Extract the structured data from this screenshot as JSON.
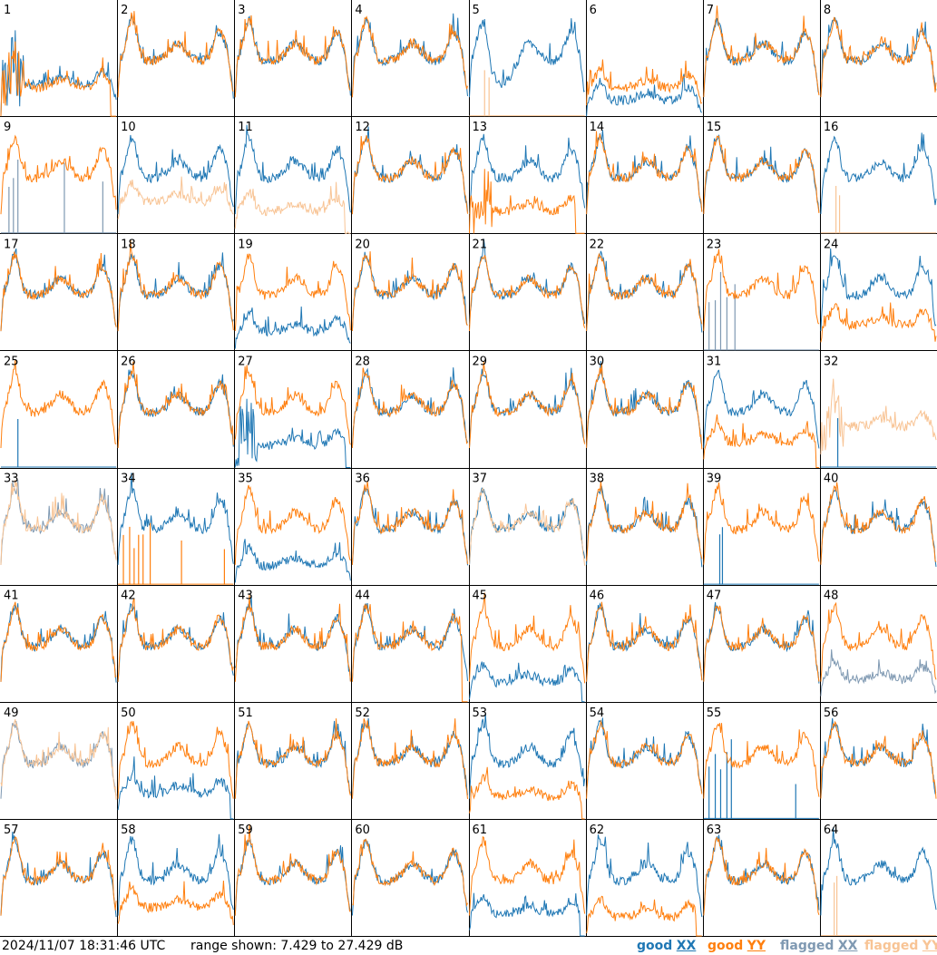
{
  "footer": {
    "timestamp": "2024/11/07 18:31:46 UTC",
    "range_text": "range shown: 7.429 to 27.429 dB",
    "legend": [
      {
        "label": "good",
        "key": "XX",
        "color": "#1f77b4"
      },
      {
        "label": "good",
        "key": "YY",
        "color": "#ff7f0e"
      },
      {
        "label": "flagged",
        "key": "XX",
        "color": "#7f99b2"
      },
      {
        "label": "flagged",
        "key": "YY",
        "color": "#f8c495"
      }
    ]
  },
  "chart_data": {
    "type": "line",
    "title": "",
    "y_range_db": [
      7.429,
      27.429
    ],
    "grid": {
      "rows": 8,
      "cols": 8
    },
    "series_colors": {
      "good_xx": "#1f77b4",
      "good_yy": "#ff7f0e",
      "flagged_xx": "#7f99b2",
      "flagged_yy": "#f8c495"
    },
    "panels": [
      {
        "id": "1",
        "xx": {
          "s": "good",
          "p": "bad",
          "lev": 15
        },
        "yy": {
          "s": "good",
          "p": "bad",
          "lev": 14,
          "drop": 0.95
        }
      },
      {
        "id": "2",
        "xx": {
          "s": "good",
          "p": "normal"
        },
        "yy": {
          "s": "good",
          "p": "normal"
        }
      },
      {
        "id": "3",
        "xx": {
          "s": "good",
          "p": "normal"
        },
        "yy": {
          "s": "good",
          "p": "normal"
        }
      },
      {
        "id": "4",
        "xx": {
          "s": "good",
          "p": "normal"
        },
        "yy": {
          "s": "good",
          "p": "normal"
        }
      },
      {
        "id": "5",
        "xx": {
          "s": "good",
          "p": "dip"
        },
        "yy": {
          "s": "flagged",
          "p": "spikes",
          "pos": [
            0.13,
            0.17
          ]
        }
      },
      {
        "id": "6",
        "xx": {
          "s": "good",
          "p": "low",
          "lev": 10
        },
        "yy": {
          "s": "good",
          "p": "low",
          "lev": 14
        }
      },
      {
        "id": "7",
        "xx": {
          "s": "good",
          "p": "normal"
        },
        "yy": {
          "s": "good",
          "p": "normal"
        }
      },
      {
        "id": "8",
        "xx": {
          "s": "good",
          "p": "normal"
        },
        "yy": {
          "s": "good",
          "p": "normal"
        }
      },
      {
        "id": "9",
        "xx": {
          "s": "flagged",
          "p": "spikes",
          "pos": [
            0.07,
            0.11,
            0.15,
            0.5,
            0.55,
            0.88
          ]
        },
        "yy": {
          "s": "good",
          "p": "normal"
        }
      },
      {
        "id": "10",
        "xx": {
          "s": "good",
          "p": "normal"
        },
        "yy": {
          "s": "flagged",
          "p": "low",
          "lev": 15
        }
      },
      {
        "id": "11",
        "xx": {
          "s": "good",
          "p": "normal"
        },
        "yy": {
          "s": "flagged",
          "p": "low",
          "lev": 12,
          "drop": 0.95
        }
      },
      {
        "id": "12",
        "xx": {
          "s": "good",
          "p": "normal"
        },
        "yy": {
          "s": "good",
          "p": "normal"
        }
      },
      {
        "id": "13",
        "xx": {
          "s": "good",
          "p": "normal"
        },
        "yy": {
          "s": "good",
          "p": "bad",
          "lev": 12,
          "drop": 0.92
        }
      },
      {
        "id": "14",
        "xx": {
          "s": "good",
          "p": "normal"
        },
        "yy": {
          "s": "good",
          "p": "normal"
        }
      },
      {
        "id": "15",
        "xx": {
          "s": "good",
          "p": "normal"
        },
        "yy": {
          "s": "good",
          "p": "normal"
        }
      },
      {
        "id": "16",
        "xx": {
          "s": "good",
          "p": "normal"
        },
        "yy": {
          "s": "flagged",
          "p": "spikes",
          "pos": [
            0.13,
            0.16
          ]
        }
      },
      {
        "id": "17",
        "xx": {
          "s": "good",
          "p": "normal"
        },
        "yy": {
          "s": "good",
          "p": "normal"
        }
      },
      {
        "id": "18",
        "xx": {
          "s": "good",
          "p": "normal"
        },
        "yy": {
          "s": "good",
          "p": "normal"
        }
      },
      {
        "id": "19",
        "xx": {
          "s": "good",
          "p": "low",
          "lev": 11
        },
        "yy": {
          "s": "good",
          "p": "normal"
        }
      },
      {
        "id": "20",
        "xx": {
          "s": "good",
          "p": "normal"
        },
        "yy": {
          "s": "good",
          "p": "normal"
        }
      },
      {
        "id": "21",
        "xx": {
          "s": "good",
          "p": "normal"
        },
        "yy": {
          "s": "good",
          "p": "normal"
        }
      },
      {
        "id": "22",
        "xx": {
          "s": "good",
          "p": "normal"
        },
        "yy": {
          "s": "good",
          "p": "normal"
        }
      },
      {
        "id": "23",
        "xx": {
          "s": "flagged",
          "p": "spikes",
          "pos": [
            0.05,
            0.1,
            0.15,
            0.2,
            0.27
          ]
        },
        "yy": {
          "s": "good",
          "p": "normal"
        }
      },
      {
        "id": "24",
        "xx": {
          "s": "good",
          "p": "normal"
        },
        "yy": {
          "s": "good",
          "p": "low",
          "lev": 13
        }
      },
      {
        "id": "25",
        "xx": {
          "s": "good",
          "p": "spikes",
          "pos": [
            0.15
          ]
        },
        "yy": {
          "s": "good",
          "p": "normal"
        }
      },
      {
        "id": "26",
        "xx": {
          "s": "good",
          "p": "normal"
        },
        "yy": {
          "s": "good",
          "p": "normal"
        }
      },
      {
        "id": "27",
        "xx": {
          "s": "good",
          "p": "bad",
          "lev": 12,
          "drop": 0.96
        },
        "yy": {
          "s": "good",
          "p": "normal"
        }
      },
      {
        "id": "28",
        "xx": {
          "s": "good",
          "p": "normal"
        },
        "yy": {
          "s": "good",
          "p": "normal"
        }
      },
      {
        "id": "29",
        "xx": {
          "s": "good",
          "p": "normal"
        },
        "yy": {
          "s": "good",
          "p": "normal"
        }
      },
      {
        "id": "30",
        "xx": {
          "s": "good",
          "p": "normal"
        },
        "yy": {
          "s": "good",
          "p": "normal"
        }
      },
      {
        "id": "31",
        "xx": {
          "s": "good",
          "p": "normal"
        },
        "yy": {
          "s": "good",
          "p": "low",
          "lev": 13,
          "drop": 0.97
        }
      },
      {
        "id": "32",
        "xx": {
          "s": "good",
          "p": "spikes",
          "pos": [
            0.15
          ]
        },
        "yy": {
          "s": "flagged",
          "p": "bad",
          "lev": 18
        }
      },
      {
        "id": "33",
        "xx": {
          "s": "flagged",
          "p": "normal"
        },
        "yy": {
          "s": "flagged",
          "p": "normal"
        }
      },
      {
        "id": "34",
        "xx": {
          "s": "good",
          "p": "normal"
        },
        "yy": {
          "s": "good",
          "p": "spikes",
          "pos": [
            0.05,
            0.1,
            0.14,
            0.18,
            0.22,
            0.28,
            0.55,
            0.92
          ]
        }
      },
      {
        "id": "35",
        "xx": {
          "s": "good",
          "p": "low",
          "lev": 11
        },
        "yy": {
          "s": "good",
          "p": "normal"
        }
      },
      {
        "id": "36",
        "xx": {
          "s": "good",
          "p": "normal"
        },
        "yy": {
          "s": "good",
          "p": "normal"
        }
      },
      {
        "id": "37",
        "xx": {
          "s": "good",
          "p": "normal"
        },
        "yy": {
          "s": "flagged",
          "p": "normal"
        }
      },
      {
        "id": "38",
        "xx": {
          "s": "good",
          "p": "normal"
        },
        "yy": {
          "s": "good",
          "p": "normal"
        }
      },
      {
        "id": "39",
        "xx": {
          "s": "good",
          "p": "spikes",
          "pos": [
            0.14,
            0.16
          ]
        },
        "yy": {
          "s": "good",
          "p": "normal"
        }
      },
      {
        "id": "40",
        "xx": {
          "s": "good",
          "p": "normal"
        },
        "yy": {
          "s": "good",
          "p": "normal"
        }
      },
      {
        "id": "41",
        "xx": {
          "s": "good",
          "p": "normal"
        },
        "yy": {
          "s": "good",
          "p": "normal"
        }
      },
      {
        "id": "42",
        "xx": {
          "s": "good",
          "p": "normal"
        },
        "yy": {
          "s": "good",
          "p": "normal"
        }
      },
      {
        "id": "43",
        "xx": {
          "s": "good",
          "p": "normal"
        },
        "yy": {
          "s": "good",
          "p": "normal"
        }
      },
      {
        "id": "44",
        "xx": {
          "s": "good",
          "p": "normal"
        },
        "yy": {
          "s": "good",
          "p": "normal",
          "drop": 0.95
        }
      },
      {
        "id": "45",
        "xx": {
          "s": "good",
          "p": "low",
          "lev": 11,
          "drop": 0.97
        },
        "yy": {
          "s": "good",
          "p": "normal"
        }
      },
      {
        "id": "46",
        "xx": {
          "s": "good",
          "p": "normal"
        },
        "yy": {
          "s": "good",
          "p": "normal"
        }
      },
      {
        "id": "47",
        "xx": {
          "s": "good",
          "p": "normal"
        },
        "yy": {
          "s": "good",
          "p": "normal"
        }
      },
      {
        "id": "48",
        "xx": {
          "s": "flagged",
          "p": "low",
          "lev": 12
        },
        "yy": {
          "s": "good",
          "p": "normal"
        }
      },
      {
        "id": "49",
        "xx": {
          "s": "flagged",
          "p": "normal"
        },
        "yy": {
          "s": "flagged",
          "p": "normal"
        }
      },
      {
        "id": "50",
        "xx": {
          "s": "good",
          "p": "low",
          "lev": 13,
          "drop": 0.97
        },
        "yy": {
          "s": "good",
          "p": "normal"
        }
      },
      {
        "id": "51",
        "xx": {
          "s": "good",
          "p": "normal"
        },
        "yy": {
          "s": "good",
          "p": "normal"
        }
      },
      {
        "id": "52",
        "xx": {
          "s": "good",
          "p": "normal"
        },
        "yy": {
          "s": "good",
          "p": "normal"
        }
      },
      {
        "id": "53",
        "xx": {
          "s": "good",
          "p": "normal"
        },
        "yy": {
          "s": "good",
          "p": "low",
          "lev": 12,
          "drop": 0.97
        }
      },
      {
        "id": "54",
        "xx": {
          "s": "good",
          "p": "normal"
        },
        "yy": {
          "s": "good",
          "p": "normal"
        }
      },
      {
        "id": "55",
        "xx": {
          "s": "good",
          "p": "spikes",
          "pos": [
            0.05,
            0.1,
            0.15,
            0.2,
            0.24,
            0.8
          ]
        },
        "yy": {
          "s": "good",
          "p": "normal"
        }
      },
      {
        "id": "56",
        "xx": {
          "s": "good",
          "p": "normal"
        },
        "yy": {
          "s": "good",
          "p": "normal"
        }
      },
      {
        "id": "57",
        "xx": {
          "s": "good",
          "p": "normal"
        },
        "yy": {
          "s": "good",
          "p": "normal"
        }
      },
      {
        "id": "58",
        "xx": {
          "s": "good",
          "p": "normal"
        },
        "yy": {
          "s": "good",
          "p": "low",
          "lev": 14
        }
      },
      {
        "id": "59",
        "xx": {
          "s": "good",
          "p": "normal"
        },
        "yy": {
          "s": "good",
          "p": "normal"
        }
      },
      {
        "id": "60",
        "xx": {
          "s": "good",
          "p": "normal"
        },
        "yy": {
          "s": "good",
          "p": "normal"
        }
      },
      {
        "id": "61",
        "xx": {
          "s": "good",
          "p": "low",
          "lev": 12,
          "drop": 0.96
        },
        "yy": {
          "s": "good",
          "p": "normal"
        }
      },
      {
        "id": "62",
        "xx": {
          "s": "good",
          "p": "normal"
        },
        "yy": {
          "s": "good",
          "p": "low",
          "lev": 11,
          "drop": 0.95
        }
      },
      {
        "id": "63",
        "xx": {
          "s": "good",
          "p": "normal"
        },
        "yy": {
          "s": "good",
          "p": "normal"
        }
      },
      {
        "id": "64",
        "xx": {
          "s": "good",
          "p": "normal"
        },
        "yy": {
          "s": "flagged",
          "p": "spikes",
          "pos": [
            0.12,
            0.14
          ]
        }
      }
    ]
  }
}
